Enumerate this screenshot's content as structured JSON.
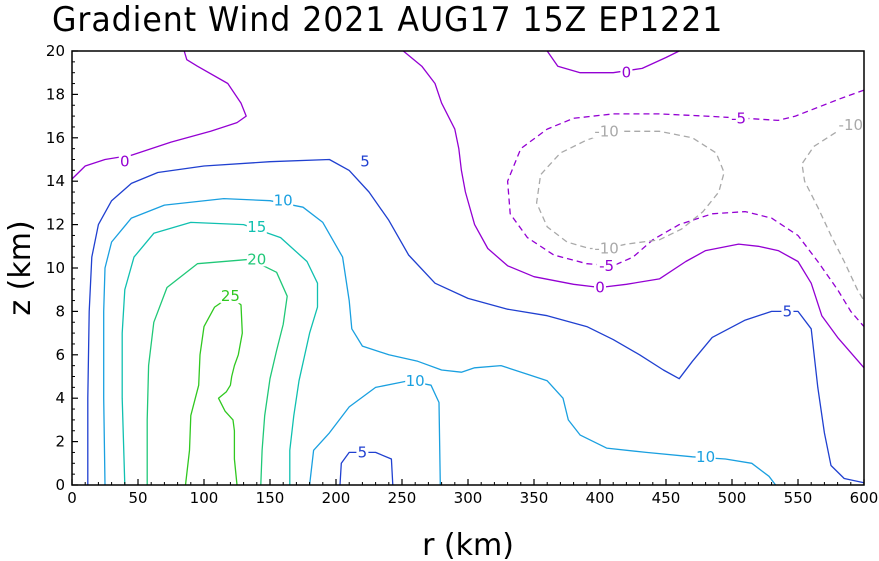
{
  "chart_data": {
    "type": "contour",
    "title": "Gradient Wind 2021 AUG17 15Z  EP1221",
    "xlabel": "r (km)",
    "ylabel": "z (km)",
    "xlim": [
      0,
      600
    ],
    "ylim": [
      0,
      20
    ],
    "x_ticks": [
      "0",
      "50",
      "100",
      "150",
      "200",
      "250",
      "300",
      "350",
      "400",
      "450",
      "500",
      "550",
      "600"
    ],
    "y_ticks": [
      "0",
      "2",
      "4",
      "6",
      "8",
      "10",
      "12",
      "14",
      "16",
      "18",
      "20"
    ],
    "grid": false,
    "contours": [
      {
        "level": "0",
        "color": "#9400d3",
        "dashed": false,
        "paths": [
          [
            [
              0,
              14.1
            ],
            [
              10,
              14.7
            ],
            [
              25,
              15.0
            ],
            [
              45,
              15.2
            ],
            [
              75,
              15.8
            ],
            [
              105,
              16.3
            ],
            [
              125,
              16.7
            ],
            [
              132,
              17.0
            ],
            [
              128,
              17.6
            ],
            [
              118,
              18.5
            ],
            [
              95,
              19.3
            ],
            [
              87,
              19.6
            ],
            [
              85,
              20
            ]
          ],
          [
            [
              251,
              20
            ],
            [
              265,
              19.3
            ],
            [
              275,
              18.5
            ],
            [
              280,
              17.6
            ],
            [
              290,
              16.4
            ],
            [
              293,
              15.5
            ],
            [
              295,
              14.5
            ],
            [
              298,
              13.5
            ],
            [
              305,
              12.0
            ],
            [
              315,
              10.9
            ],
            [
              330,
              10.1
            ],
            [
              350,
              9.6
            ],
            [
              380,
              9.25
            ],
            [
              400,
              9.1
            ],
            [
              420,
              9.25
            ],
            [
              445,
              9.5
            ],
            [
              465,
              10.3
            ],
            [
              480,
              10.8
            ],
            [
              505,
              11.1
            ],
            [
              520,
              11.0
            ],
            [
              535,
              10.8
            ],
            [
              550,
              10.3
            ],
            [
              560,
              9.3
            ],
            [
              568,
              7.8
            ],
            [
              580,
              6.8
            ],
            [
              600,
              5.4
            ]
          ],
          [
            [
              360,
              20
            ],
            [
              368,
              19.3
            ],
            [
              385,
              19.0
            ],
            [
              410,
              19.0
            ],
            [
              432,
              19.2
            ],
            [
              450,
              19.7
            ],
            [
              460,
              20
            ]
          ]
        ],
        "labels": [
          {
            "x": 40,
            "y": 14.9,
            "text": "0"
          },
          {
            "x": 400,
            "y": 9.1,
            "text": "0"
          },
          {
            "x": 420,
            "y": 19.0,
            "text": "0"
          }
        ]
      },
      {
        "level": "-5",
        "color": "#9400d3",
        "dashed": true,
        "paths": [
          [
            [
              600,
              18.2
            ],
            [
              582,
              17.8
            ],
            [
              565,
              17.4
            ],
            [
              548,
              17.0
            ],
            [
              535,
              16.8
            ],
            [
              510,
              16.9
            ],
            [
              480,
              17.0
            ],
            [
              445,
              17.1
            ],
            [
              410,
              17.1
            ],
            [
              380,
              16.9
            ],
            [
              360,
              16.4
            ],
            [
              340,
              15.5
            ],
            [
              330,
              14.0
            ],
            [
              332,
              12.5
            ],
            [
              345,
              11.4
            ],
            [
              365,
              10.6
            ],
            [
              390,
              10.2
            ],
            [
              410,
              10.1
            ],
            [
              425,
              10.5
            ],
            [
              440,
              11.3
            ],
            [
              460,
              12.0
            ],
            [
              485,
              12.5
            ],
            [
              510,
              12.6
            ],
            [
              530,
              12.3
            ],
            [
              550,
              11.5
            ],
            [
              565,
              10.3
            ],
            [
              580,
              9.0
            ],
            [
              590,
              8.0
            ],
            [
              600,
              7.3
            ]
          ]
        ],
        "labels": [
          {
            "x": 505,
            "y": 16.9,
            "text": "-5"
          },
          {
            "x": 405,
            "y": 10.1,
            "text": "-5"
          }
        ]
      },
      {
        "level": "-10",
        "color": "#a9a9a9",
        "dashed": true,
        "paths": [
          [
            [
              410,
              16.3
            ],
            [
              390,
              15.9
            ],
            [
              370,
              15.3
            ],
            [
              355,
              14.3
            ],
            [
              352,
              13.0
            ],
            [
              360,
              11.9
            ],
            [
              375,
              11.2
            ],
            [
              392,
              10.9
            ],
            [
              405,
              10.9
            ],
            [
              420,
              11.1
            ],
            [
              445,
              11.3
            ],
            [
              462,
              11.8
            ],
            [
              478,
              12.6
            ],
            [
              490,
              13.5
            ],
            [
              494,
              14.4
            ],
            [
              488,
              15.3
            ],
            [
              470,
              16.0
            ],
            [
              445,
              16.3
            ],
            [
              410,
              16.3
            ]
          ],
          [
            [
              600,
              16.6
            ],
            [
              585,
              16.5
            ],
            [
              562,
              15.6
            ],
            [
              553,
              14.8
            ],
            [
              555,
              14.0
            ],
            [
              565,
              12.8
            ],
            [
              575,
              11.5
            ],
            [
              585,
              10.3
            ],
            [
              595,
              9.0
            ],
            [
              600,
              8.5
            ]
          ]
        ],
        "labels": [
          {
            "x": 405,
            "y": 16.3,
            "text": "-10"
          },
          {
            "x": 405,
            "y": 10.9,
            "text": "-10"
          },
          {
            "x": 590,
            "y": 16.6,
            "text": "-10"
          }
        ]
      },
      {
        "level": "5",
        "color": "#2040d0",
        "dashed": false,
        "paths": [
          [
            [
              12,
              0
            ],
            [
              12,
              4
            ],
            [
              13,
              8
            ],
            [
              15,
              10.5
            ],
            [
              20,
              12.0
            ],
            [
              30,
              13.1
            ],
            [
              45,
              13.9
            ],
            [
              65,
              14.4
            ],
            [
              100,
              14.7
            ],
            [
              150,
              14.9
            ],
            [
              195,
              15.0
            ],
            [
              210,
              14.5
            ],
            [
              225,
              13.5
            ],
            [
              240,
              12.2
            ],
            [
              255,
              10.6
            ],
            [
              275,
              9.3
            ],
            [
              300,
              8.6
            ],
            [
              330,
              8.1
            ],
            [
              360,
              7.8
            ],
            [
              390,
              7.3
            ],
            [
              410,
              6.7
            ],
            [
              430,
              6.0
            ],
            [
              448,
              5.3
            ],
            [
              460,
              4.9
            ],
            [
              470,
              5.7
            ],
            [
              485,
              6.8
            ],
            [
              510,
              7.6
            ],
            [
              530,
              8.0
            ],
            [
              550,
              8.0
            ],
            [
              560,
              7.2
            ],
            [
              565,
              4.5
            ],
            [
              570,
              2.4
            ],
            [
              575,
              0.9
            ],
            [
              585,
              0.3
            ],
            [
              600,
              0.1
            ]
          ],
          [
            [
              203,
              0
            ],
            [
              204,
              1.0
            ],
            [
              210,
              1.5
            ],
            [
              230,
              1.5
            ],
            [
              242,
              1.2
            ],
            [
              243,
              0
            ]
          ]
        ],
        "labels": [
          {
            "x": 222,
            "y": 14.9,
            "text": "5"
          },
          {
            "x": 542,
            "y": 8.0,
            "text": "5"
          },
          {
            "x": 220,
            "y": 1.5,
            "text": "5"
          }
        ]
      },
      {
        "level": "10",
        "color": "#1aa0e0",
        "dashed": false,
        "paths": [
          [
            [
              25,
              0
            ],
            [
              24,
              4
            ],
            [
              24,
              8
            ],
            [
              25,
              10
            ],
            [
              30,
              11.2
            ],
            [
              45,
              12.3
            ],
            [
              70,
              12.9
            ],
            [
              115,
              13.2
            ],
            [
              150,
              13.1
            ],
            [
              175,
              12.8
            ],
            [
              190,
              12.1
            ],
            [
              205,
              10.5
            ],
            [
              210,
              8.5
            ],
            [
              212,
              7.2
            ],
            [
              220,
              6.4
            ],
            [
              240,
              6.0
            ],
            [
              262,
              5.7
            ],
            [
              280,
              5.3
            ],
            [
              295,
              5.2
            ],
            [
              305,
              5.4
            ],
            [
              325,
              5.5
            ],
            [
              345,
              5.1
            ],
            [
              360,
              4.8
            ],
            [
              372,
              4.0
            ],
            [
              376,
              3.0
            ],
            [
              385,
              2.3
            ],
            [
              405,
              1.7
            ],
            [
              435,
              1.5
            ],
            [
              470,
              1.3
            ],
            [
              495,
              1.2
            ],
            [
              515,
              1.0
            ],
            [
              528,
              0.4
            ],
            [
              533,
              0
            ]
          ],
          [
            [
              180,
              0
            ],
            [
              183,
              1.6
            ],
            [
              195,
              2.4
            ],
            [
              210,
              3.6
            ],
            [
              230,
              4.5
            ],
            [
              255,
              4.8
            ],
            [
              272,
              4.6
            ],
            [
              278,
              3.8
            ],
            [
              279,
              0
            ]
          ]
        ],
        "labels": [
          {
            "x": 160,
            "y": 13.1,
            "text": "10"
          },
          {
            "x": 260,
            "y": 4.8,
            "text": "10"
          },
          {
            "x": 480,
            "y": 1.3,
            "text": "10"
          }
        ]
      },
      {
        "level": "15",
        "color": "#10c0b0",
        "dashed": false,
        "paths": [
          [
            [
              40,
              0
            ],
            [
              38,
              4
            ],
            [
              38,
              7
            ],
            [
              40,
              9
            ],
            [
              47,
              10.5
            ],
            [
              62,
              11.6
            ],
            [
              90,
              12.1
            ],
            [
              130,
              12.0
            ],
            [
              158,
              11.4
            ],
            [
              178,
              10.3
            ],
            [
              186,
              9.3
            ],
            [
              186,
              8.2
            ],
            [
              180,
              7.0
            ],
            [
              176,
              5.9
            ],
            [
              172,
              4.8
            ],
            [
              168,
              3.2
            ],
            [
              165,
              1.6
            ],
            [
              165,
              0
            ]
          ]
        ],
        "labels": [
          {
            "x": 140,
            "y": 11.9,
            "text": "15"
          }
        ]
      },
      {
        "level": "20",
        "color": "#20c878",
        "dashed": false,
        "paths": [
          [
            [
              57,
              0
            ],
            [
              57,
              3
            ],
            [
              58,
              5.5
            ],
            [
              62,
              7.5
            ],
            [
              72,
              9.1
            ],
            [
              95,
              10.2
            ],
            [
              135,
              10.4
            ],
            [
              155,
              9.8
            ],
            [
              163,
              8.7
            ],
            [
              160,
              7.4
            ],
            [
              155,
              6.2
            ],
            [
              150,
              4.9
            ],
            [
              146,
              3.2
            ],
            [
              144,
              1.6
            ],
            [
              143,
              0
            ]
          ]
        ],
        "labels": [
          {
            "x": 140,
            "y": 10.4,
            "text": "20"
          }
        ]
      },
      {
        "level": "25",
        "color": "#30c820",
        "dashed": false,
        "paths": [
          [
            [
              86,
              0
            ],
            [
              89,
              1.6
            ],
            [
              90,
              3.2
            ],
            [
              96,
              4.6
            ],
            [
              97,
              6.0
            ],
            [
              100,
              7.3
            ],
            [
              108,
              8.2
            ],
            [
              120,
              8.7
            ],
            [
              128,
              8.3
            ],
            [
              129,
              7.0
            ],
            [
              126,
              6.0
            ],
            [
              123,
              5.5
            ],
            [
              121,
              5.0
            ],
            [
              120,
              4.6
            ],
            [
              117,
              4.3
            ],
            [
              111,
              4.0
            ],
            [
              116,
              3.4
            ],
            [
              122,
              3.0
            ],
            [
              123,
              2.5
            ],
            [
              123,
              1.2
            ],
            [
              125,
              0
            ]
          ]
        ],
        "labels": [
          {
            "x": 120,
            "y": 8.7,
            "text": "25"
          }
        ]
      }
    ]
  }
}
